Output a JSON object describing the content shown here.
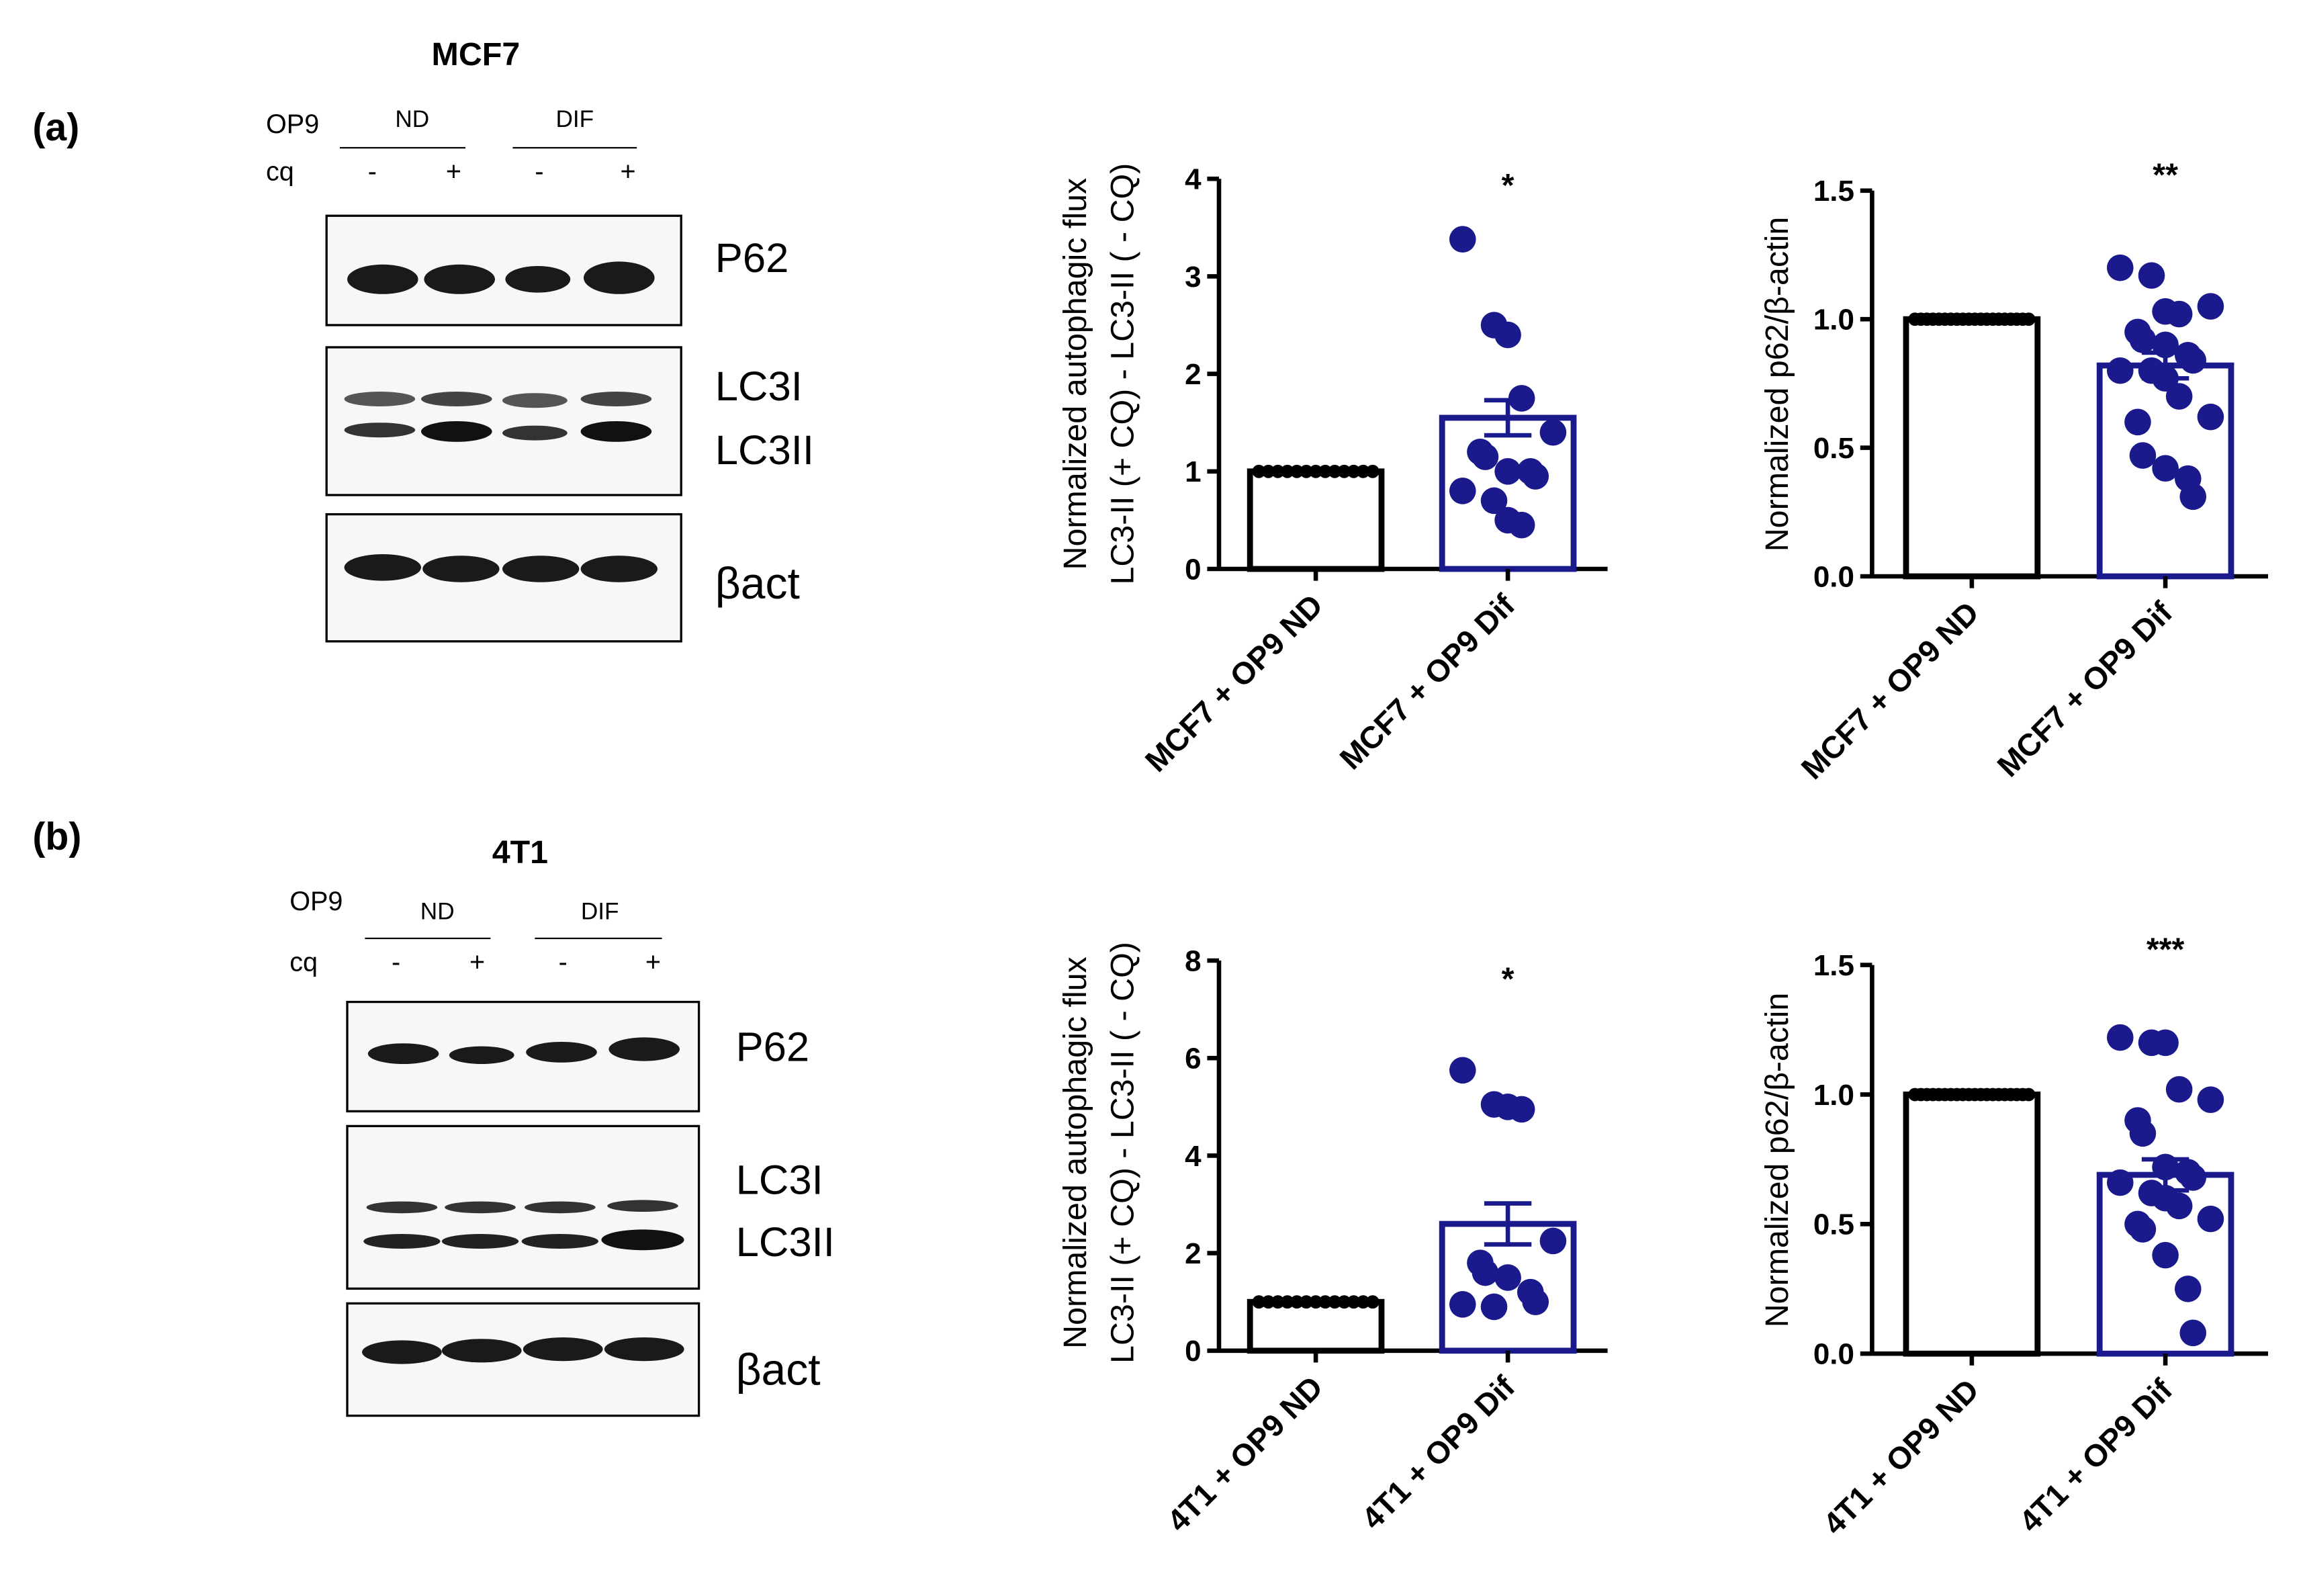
{
  "figure": {
    "panels": [
      {
        "label": "(a)",
        "blot": {
          "title": "MCF7",
          "row_labels": [
            "OP9",
            "cq"
          ],
          "groups": [
            "ND",
            "DIF"
          ],
          "cq_marks": [
            "-",
            "+",
            "-",
            "+"
          ],
          "band_labels": [
            "P62",
            "LC3I",
            "LC3II",
            "βact"
          ]
        }
      },
      {
        "label": "(b)",
        "blot": {
          "title": "4T1",
          "row_labels": [
            "OP9",
            "cq"
          ],
          "groups": [
            "ND",
            "DIF"
          ],
          "cq_marks": [
            "-",
            "+",
            "-",
            "+"
          ],
          "band_labels": [
            "P62",
            "LC3I",
            "LC3II",
            "βact"
          ]
        }
      }
    ]
  },
  "chart_data": [
    {
      "type": "bar",
      "panel": "(a)",
      "ylabel": [
        "Normalized autophagic flux",
        "LC3-II (+ CQ) - LC3-II ( - CQ)"
      ],
      "categories": [
        "MCF7 + OP9  ND",
        "MCF7 + OP9 Dif"
      ],
      "ylim": [
        0,
        4
      ],
      "yticks": [
        "0",
        "1",
        "2",
        "3",
        "4"
      ],
      "values": [
        1.0,
        1.55
      ],
      "sem": [
        0,
        0.18
      ],
      "significance": "*",
      "colors": [
        "#000000",
        "#1a1a8c"
      ],
      "points": [
        [
          1,
          1,
          1,
          1,
          1,
          1,
          1,
          1,
          1,
          1,
          1,
          1,
          1
        ],
        [
          3.38,
          2.5,
          2.4,
          1.75,
          1.4,
          1.2,
          1.15,
          1.0,
          1.0,
          0.95,
          0.8,
          0.7,
          0.5,
          0.45
        ]
      ]
    },
    {
      "type": "bar",
      "panel": "(a)",
      "ylabel": [
        "Normalized p62/β-actin"
      ],
      "categories": [
        "MCF7 + OP9 ND",
        "MCF7 + OP9 Dif"
      ],
      "ylim": [
        0,
        1.5
      ],
      "yticks": [
        "0.0",
        "0.5",
        "1.0",
        "1.5"
      ],
      "values": [
        1.0,
        0.82
      ],
      "sem": [
        0,
        0.05
      ],
      "significance": "**",
      "colors": [
        "#000000",
        "#1a1a8c"
      ],
      "points": [
        [
          1,
          1,
          1,
          1,
          1,
          1,
          1,
          1,
          1,
          1,
          1,
          1,
          1,
          1,
          1,
          1,
          1,
          1,
          1,
          1
        ],
        [
          1.2,
          1.17,
          1.03,
          1.02,
          1.05,
          0.95,
          0.92,
          0.9,
          0.86,
          0.84,
          0.8,
          0.8,
          0.77,
          0.7,
          0.62,
          0.6,
          0.47,
          0.42,
          0.38,
          0.31
        ]
      ]
    },
    {
      "type": "bar",
      "panel": "(b)",
      "ylabel": [
        "Normalized autophagic flux",
        "LC3-II (+ CQ) - LC3-II ( - CQ)"
      ],
      "categories": [
        "4T1 + OP9 ND",
        "4T1 + OP9  Dif"
      ],
      "ylim": [
        0,
        8
      ],
      "yticks": [
        "0",
        "2",
        "4",
        "6",
        "8"
      ],
      "values": [
        1.0,
        2.6
      ],
      "sem": [
        0,
        0.42
      ],
      "significance": "*",
      "colors": [
        "#000000",
        "#1a1a8c"
      ],
      "points": [
        [
          1,
          1,
          1,
          1,
          1,
          1,
          1,
          1,
          1,
          1,
          1,
          1,
          1
        ],
        [
          5.75,
          5.05,
          5.0,
          4.95,
          2.25,
          1.8,
          1.6,
          1.5,
          1.2,
          1.0,
          0.95,
          0.9
        ]
      ]
    },
    {
      "type": "bar",
      "panel": "(b)",
      "ylabel": [
        "Normalized p62/β-actin"
      ],
      "categories": [
        "4T1 + OP9 ND",
        "4T1 + OP9 Dif"
      ],
      "ylim": [
        0,
        1.5
      ],
      "yticks": [
        "0.0",
        "0.5",
        "1.0",
        "1.5"
      ],
      "values": [
        1.0,
        0.69
      ],
      "sem": [
        0,
        0.06
      ],
      "significance": "***",
      "colors": [
        "#000000",
        "#1a1a8c"
      ],
      "points": [
        [
          1,
          1,
          1,
          1,
          1,
          1,
          1,
          1,
          1,
          1,
          1,
          1,
          1,
          1,
          1,
          1,
          1,
          1,
          1,
          1
        ],
        [
          1.22,
          1.2,
          1.2,
          1.02,
          0.98,
          0.9,
          0.85,
          0.72,
          0.7,
          0.68,
          0.66,
          0.62,
          0.6,
          0.57,
          0.52,
          0.5,
          0.48,
          0.38,
          0.25,
          0.08
        ]
      ]
    }
  ]
}
